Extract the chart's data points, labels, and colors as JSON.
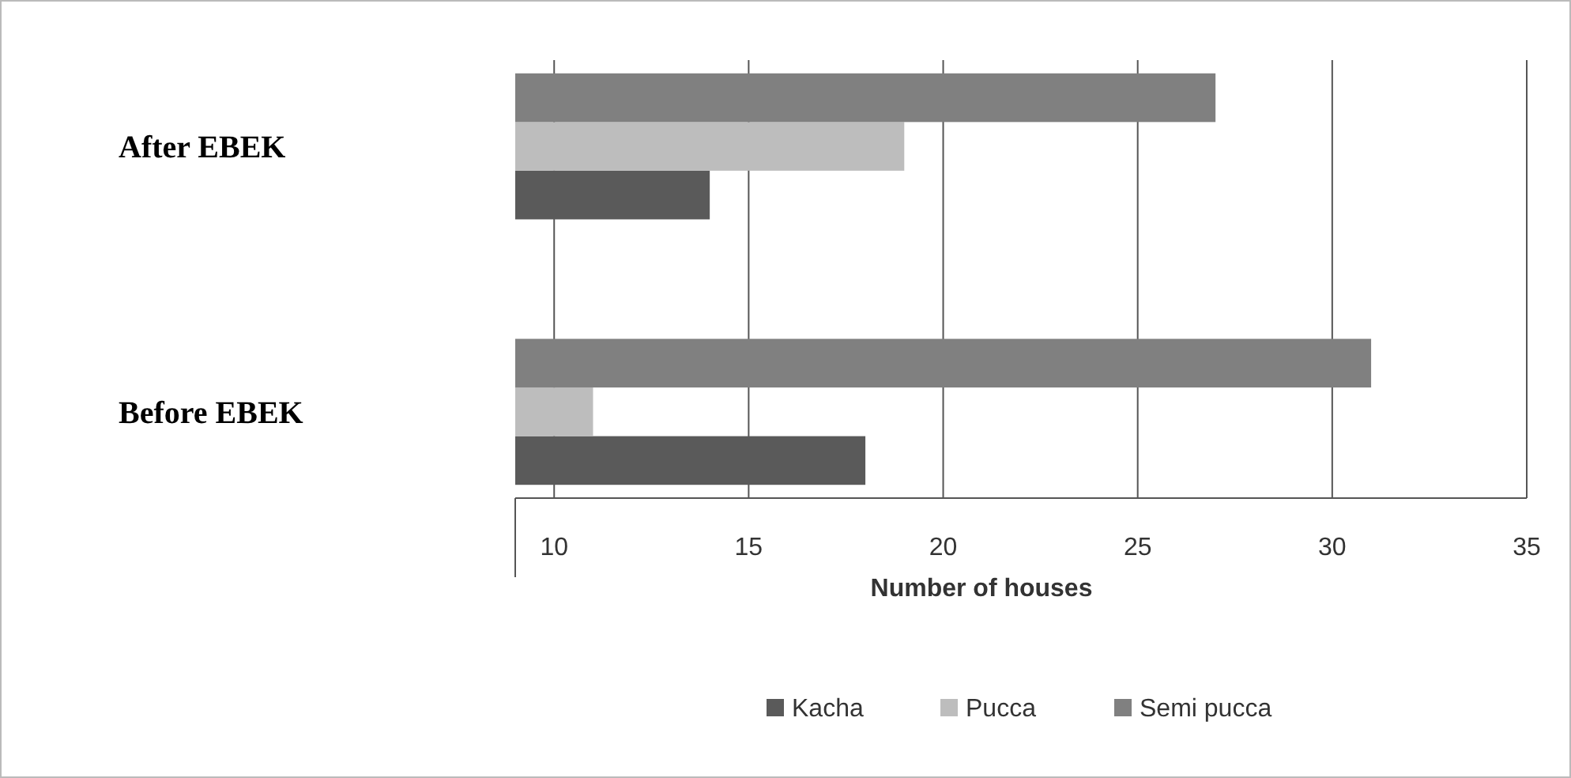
{
  "chart_data": {
    "type": "bar",
    "orientation": "horizontal",
    "categories": [
      "After EBEK",
      "Before EBEK"
    ],
    "series": [
      {
        "name": "Kacha",
        "color": "#5a5a5a",
        "values": [
          14,
          18
        ]
      },
      {
        "name": "Pucca",
        "color": "#bdbdbd",
        "values": [
          19,
          11
        ]
      },
      {
        "name": "Semi pucca",
        "color": "#808080",
        "values": [
          27,
          31
        ]
      }
    ],
    "xlabel": "Number of houses",
    "xlim": [
      9,
      35
    ],
    "xticks": [
      10,
      15,
      20,
      25,
      30,
      35
    ],
    "grid": "x",
    "legend": "bottom"
  }
}
